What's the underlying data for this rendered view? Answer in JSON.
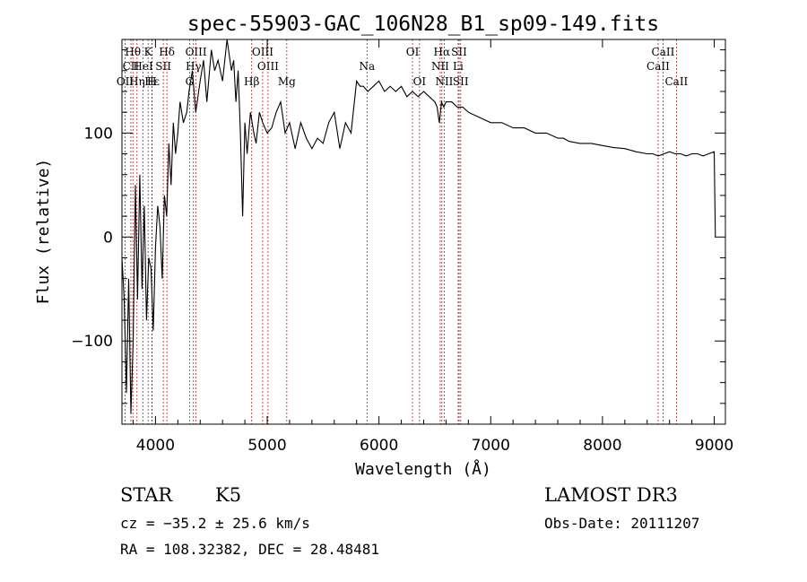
{
  "chart_data": {
    "type": "line",
    "title": "spec-55903-GAC_106N28_B1_sp09-149.fits",
    "xlabel": "Wavelength (Å)",
    "ylabel": "Flux (relative)",
    "xlim": [
      3700,
      9100
    ],
    "ylim": [
      -180,
      190
    ],
    "xticks": [
      4000,
      5000,
      6000,
      7000,
      8000,
      9000
    ],
    "yticks": [
      -100,
      0,
      100
    ],
    "line_color": "#000000",
    "marker_color": "#b22222",
    "spectrum": {
      "x": [
        3700,
        3720,
        3740,
        3760,
        3780,
        3800,
        3820,
        3840,
        3860,
        3880,
        3900,
        3920,
        3940,
        3960,
        3980,
        4000,
        4020,
        4040,
        4060,
        4080,
        4100,
        4120,
        4140,
        4160,
        4180,
        4200,
        4220,
        4250,
        4280,
        4300,
        4330,
        4360,
        4400,
        4430,
        4460,
        4500,
        4530,
        4560,
        4600,
        4640,
        4680,
        4700,
        4720,
        4740,
        4760,
        4780,
        4800,
        4820,
        4850,
        4880,
        4900,
        4930,
        4960,
        5000,
        5040,
        5080,
        5120,
        5160,
        5200,
        5250,
        5300,
        5350,
        5400,
        5450,
        5500,
        5550,
        5600,
        5650,
        5700,
        5750,
        5800,
        5830,
        5860,
        5900,
        5950,
        6000,
        6050,
        6100,
        6150,
        6200,
        6250,
        6300,
        6350,
        6400,
        6450,
        6500,
        6520,
        6540,
        6560,
        6580,
        6600,
        6650,
        6700,
        6750,
        6800,
        6900,
        7000,
        7100,
        7200,
        7300,
        7400,
        7500,
        7600,
        7650,
        7700,
        7800,
        7900,
        8000,
        8100,
        8200,
        8300,
        8400,
        8450,
        8500,
        8550,
        8600,
        8650,
        8700,
        8750,
        8800,
        8850,
        8900,
        8950,
        9000,
        9010
      ],
      "y": [
        -20,
        -60,
        -150,
        -40,
        -170,
        -100,
        50,
        -60,
        60,
        -50,
        30,
        -80,
        -20,
        -30,
        -90,
        -10,
        30,
        10,
        -40,
        40,
        20,
        90,
        50,
        110,
        80,
        100,
        130,
        110,
        120,
        140,
        160,
        120,
        150,
        170,
        130,
        180,
        160,
        170,
        150,
        190,
        160,
        170,
        130,
        160,
        100,
        20,
        110,
        80,
        120,
        100,
        90,
        120,
        110,
        100,
        105,
        120,
        130,
        100,
        110,
        85,
        110,
        95,
        85,
        95,
        90,
        110,
        120,
        85,
        110,
        100,
        150,
        145,
        145,
        140,
        145,
        150,
        140,
        145,
        140,
        145,
        135,
        140,
        135,
        140,
        135,
        130,
        125,
        110,
        130,
        125,
        130,
        130,
        125,
        125,
        120,
        115,
        110,
        110,
        105,
        105,
        100,
        100,
        95,
        95,
        92,
        90,
        90,
        88,
        86,
        85,
        82,
        80,
        80,
        78,
        80,
        82,
        80,
        80,
        78,
        80,
        80,
        78,
        80,
        82,
        0
      ]
    },
    "line_markers": [
      {
        "name": "Hθ",
        "x": 3798,
        "row": 1
      },
      {
        "name": "CII",
        "x": 3780,
        "row": 2
      },
      {
        "name": "OII",
        "x": 3728,
        "row": 3
      },
      {
        "name": "K",
        "x": 3934,
        "row": 1
      },
      {
        "name": "HeI",
        "x": 3889,
        "row": 2
      },
      {
        "name": "Hε",
        "x": 3970,
        "row": 3
      },
      {
        "name": "Hη",
        "x": 3835,
        "row": 3
      },
      {
        "name": "H",
        "x": 3968,
        "row": 3
      },
      {
        "name": "Hδ",
        "x": 4102,
        "row": 1
      },
      {
        "name": "SII",
        "x": 4070,
        "row": 2
      },
      {
        "name": "OIII",
        "x": 4363,
        "row": 1
      },
      {
        "name": "Hγ",
        "x": 4340,
        "row": 2
      },
      {
        "name": "G",
        "x": 4305,
        "row": 3
      },
      {
        "name": "OIII",
        "x": 4959,
        "row": 1
      },
      {
        "name": "OIII",
        "x": 5007,
        "row": 2
      },
      {
        "name": "Hβ",
        "x": 4861,
        "row": 3
      },
      {
        "name": "Mg",
        "x": 5175,
        "row": 3
      },
      {
        "name": "Na",
        "x": 5893,
        "row": 2
      },
      {
        "name": "OI",
        "x": 6300,
        "row": 1
      },
      {
        "name": "OI",
        "x": 6363,
        "row": 3
      },
      {
        "name": "Hα",
        "x": 6563,
        "row": 1
      },
      {
        "name": "SII",
        "x": 6717,
        "row": 1
      },
      {
        "name": "NII",
        "x": 6548,
        "row": 2
      },
      {
        "name": "Li",
        "x": 6708,
        "row": 2
      },
      {
        "name": "NII",
        "x": 6584,
        "row": 3
      },
      {
        "name": "SII",
        "x": 6731,
        "row": 3
      },
      {
        "name": "CaII",
        "x": 8542,
        "row": 1
      },
      {
        "name": "CaII",
        "x": 8498,
        "row": 2
      },
      {
        "name": "CaII",
        "x": 8662,
        "row": 3
      }
    ]
  },
  "info": {
    "object_type": "STAR",
    "spectral_class": "K5",
    "survey": "LAMOST DR3",
    "cz": "cz = −35.2 ± 25.6 km/s",
    "obs_date": "Obs-Date: 20111207",
    "coords": "RA = 108.32382, DEC =  28.48481"
  }
}
